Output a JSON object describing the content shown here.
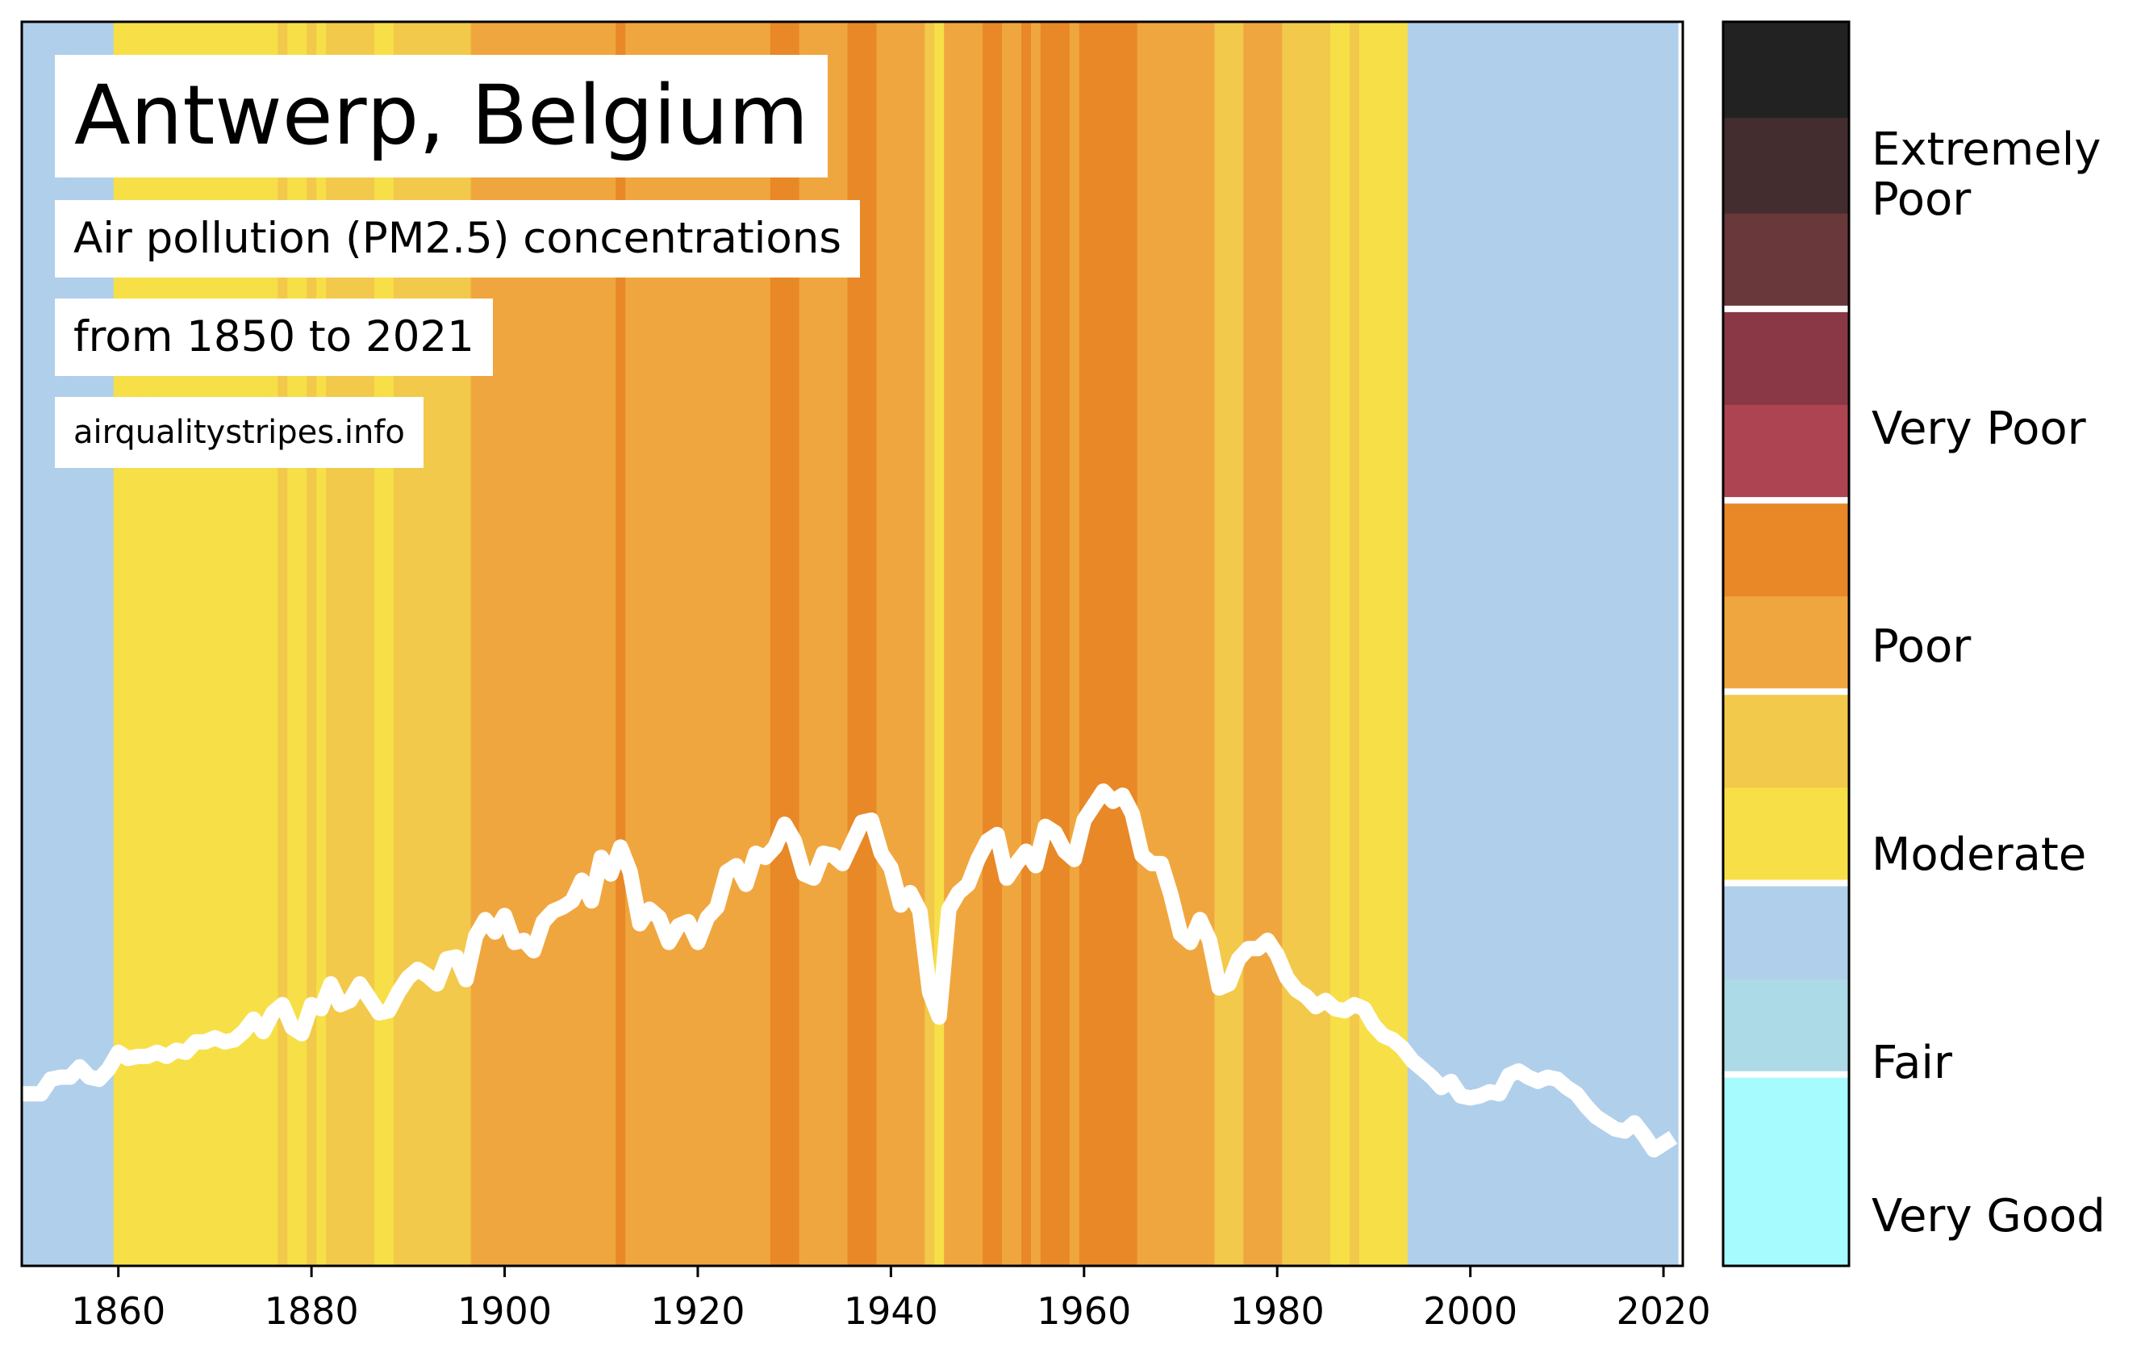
{
  "title": "Antwerp, Belgium",
  "subtitle": "Air pollution (PM2.5) concentrations",
  "range_text": "from 1850 to 2021",
  "source": "airqualitystripes.info",
  "colors": {
    "very_good": "#a6fbff",
    "very_good_high": "#acdae6",
    "fair": "#b0cfeb",
    "moderate_low": "#f7df47",
    "moderate_high": "#f2c94b",
    "poor_low": "#f0a63f",
    "poor_high": "#e88827",
    "very_poor_low": "#ad4452",
    "very_poor_high": "#8a3845",
    "extremely_poor_1": "#69383a",
    "extremely_poor_2": "#442d2f",
    "extremely_poor_3": "#222222",
    "line": "#ffffff"
  },
  "colorbar": {
    "categories": [
      "Very Good",
      "Fair",
      "Moderate",
      "Poor",
      "Very Poor",
      "Extremely Poor"
    ],
    "labels": {
      "very_good": "Very Good",
      "fair": "Fair",
      "moderate": "Moderate",
      "poor": "Poor",
      "very_poor": "Very Poor",
      "extremely_poor": "Extremely\nPoor"
    }
  },
  "chart_data": {
    "type": "line",
    "xlim": [
      1850,
      2022
    ],
    "ylim": [
      0,
      60
    ],
    "x_ticks": [
      1860,
      1880,
      1900,
      1920,
      1940,
      1960,
      1980,
      2000,
      2020
    ],
    "x": [
      1850,
      1851,
      1852,
      1853,
      1854,
      1855,
      1856,
      1857,
      1858,
      1859,
      1860,
      1861,
      1862,
      1863,
      1864,
      1865,
      1866,
      1867,
      1868,
      1869,
      1870,
      1871,
      1872,
      1873,
      1874,
      1875,
      1876,
      1877,
      1878,
      1879,
      1880,
      1881,
      1882,
      1883,
      1884,
      1885,
      1886,
      1887,
      1888,
      1889,
      1890,
      1891,
      1892,
      1893,
      1894,
      1895,
      1896,
      1897,
      1898,
      1899,
      1900,
      1901,
      1902,
      1903,
      1904,
      1905,
      1906,
      1907,
      1908,
      1909,
      1910,
      1911,
      1912,
      1913,
      1914,
      1915,
      1916,
      1917,
      1918,
      1919,
      1920,
      1921,
      1922,
      1923,
      1924,
      1925,
      1926,
      1927,
      1928,
      1929,
      1930,
      1931,
      1932,
      1933,
      1934,
      1935,
      1936,
      1937,
      1938,
      1939,
      1940,
      1941,
      1942,
      1943,
      1944,
      1945,
      1946,
      1947,
      1948,
      1949,
      1950,
      1951,
      1952,
      1953,
      1954,
      1955,
      1956,
      1957,
      1958,
      1959,
      1960,
      1961,
      1962,
      1963,
      1964,
      1965,
      1966,
      1967,
      1968,
      1969,
      1970,
      1971,
      1972,
      1973,
      1974,
      1975,
      1976,
      1977,
      1978,
      1979,
      1980,
      1981,
      1982,
      1983,
      1984,
      1985,
      1986,
      1987,
      1988,
      1989,
      1990,
      1991,
      1992,
      1993,
      1994,
      1995,
      1996,
      1997,
      1998,
      1999,
      2000,
      2001,
      2002,
      2003,
      2004,
      2005,
      2006,
      2007,
      2008,
      2009,
      2010,
      2011,
      2012,
      2013,
      2014,
      2015,
      2016,
      2017,
      2018,
      2019,
      2020,
      2021
    ],
    "y": [
      8.3,
      8.3,
      8.3,
      9.0,
      9.1,
      9.1,
      9.6,
      9.1,
      9.0,
      9.5,
      10.3,
      10.0,
      10.1,
      10.1,
      10.3,
      10.1,
      10.4,
      10.3,
      10.8,
      10.8,
      11.0,
      10.8,
      10.9,
      11.3,
      11.9,
      11.3,
      12.2,
      12.6,
      11.5,
      11.2,
      12.6,
      12.4,
      13.6,
      12.6,
      12.8,
      13.6,
      12.9,
      12.2,
      12.3,
      13.2,
      13.9,
      14.3,
      14.0,
      13.6,
      14.8,
      14.9,
      13.8,
      15.9,
      16.7,
      16.1,
      16.9,
      15.6,
      15.7,
      15.2,
      16.6,
      17.1,
      17.3,
      17.6,
      18.6,
      17.6,
      19.7,
      18.9,
      20.2,
      19.0,
      16.5,
      17.2,
      16.8,
      15.6,
      16.4,
      16.6,
      15.6,
      16.8,
      17.3,
      19.0,
      19.3,
      18.4,
      19.9,
      19.7,
      20.2,
      21.3,
      20.5,
      18.9,
      18.7,
      19.9,
      19.8,
      19.4,
      20.4,
      21.4,
      21.5,
      19.9,
      19.2,
      17.4,
      18.0,
      17.1,
      13.2,
      12.0,
      17.2,
      18.0,
      18.4,
      19.6,
      20.5,
      20.8,
      18.7,
      19.4,
      20.0,
      19.3,
      21.2,
      20.9,
      20.0,
      19.6,
      21.5,
      22.2,
      22.9,
      22.4,
      22.7,
      21.8,
      19.8,
      19.4,
      19.4,
      17.9,
      16.0,
      15.6,
      16.7,
      15.7,
      13.4,
      13.6,
      14.8,
      15.3,
      15.3,
      15.7,
      15.0,
      13.9,
      13.3,
      13.0,
      12.5,
      12.8,
      12.4,
      12.3,
      12.6,
      12.4,
      11.6,
      11.1,
      10.9,
      10.5,
      9.9,
      9.5,
      9.1,
      8.6,
      8.9,
      8.2,
      8.1,
      8.2,
      8.4,
      8.3,
      9.2,
      9.4,
      9.1,
      8.9,
      9.1,
      9.0,
      8.6,
      8.3,
      7.7,
      7.2,
      6.9,
      6.6,
      6.5,
      6.9,
      6.3,
      5.6,
      5.9,
      6.2
    ]
  }
}
